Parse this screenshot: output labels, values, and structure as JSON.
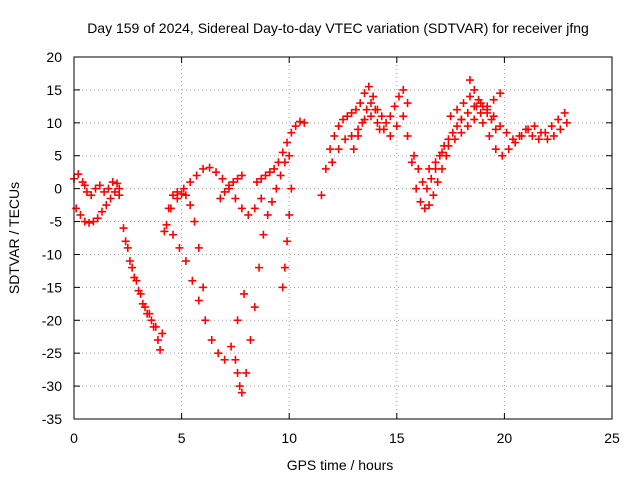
{
  "chart_data": {
    "type": "scatter",
    "title": "Day 159 of 2024, Sidereal Day-to-day VTEC variation (SDTVAR) for receiver jfng",
    "xlabel": "GPS time / hours",
    "ylabel": "SDTVAR / TECUs",
    "xlim": [
      0,
      25
    ],
    "ylim": [
      -35,
      20
    ],
    "xticks": [
      "0",
      "5",
      "10",
      "15",
      "20",
      "25"
    ],
    "yticks": [
      "20",
      "15",
      "10",
      "5",
      "0",
      "-5",
      "-10",
      "-15",
      "-20",
      "-25",
      "-30",
      "-35"
    ],
    "grid": true,
    "marker": "+",
    "series": [
      {
        "name": "SDTVAR",
        "color": "#ff0000",
        "x": [
          0.0,
          0.2,
          0.4,
          0.5,
          0.6,
          0.8,
          1.0,
          1.2,
          1.4,
          1.6,
          1.8,
          2.0,
          2.1,
          0.1,
          0.3,
          0.5,
          0.7,
          0.9,
          1.1,
          1.3,
          1.5,
          1.7,
          1.9,
          2.1,
          2.3,
          2.5,
          2.7,
          2.9,
          3.1,
          3.3,
          3.5,
          3.7,
          3.9,
          4.0,
          2.4,
          2.6,
          2.8,
          3.0,
          3.2,
          3.4,
          3.6,
          3.8,
          4.1,
          4.2,
          4.4,
          4.6,
          4.8,
          5.0,
          5.2,
          5.4,
          5.6,
          5.8,
          6.0,
          4.3,
          4.6,
          4.9,
          5.2,
          5.5,
          5.8,
          6.1,
          6.4,
          6.7,
          7.0,
          7.3,
          7.6,
          7.9,
          4.5,
          4.8,
          5.1,
          5.4,
          5.7,
          6.0,
          6.3,
          6.6,
          6.9,
          7.2,
          7.5,
          7.8,
          8.1,
          8.4,
          8.7,
          6.8,
          7.0,
          7.2,
          7.4,
          7.6,
          7.8,
          7.5,
          7.6,
          7.7,
          7.8,
          8.0,
          8.2,
          8.4,
          8.6,
          8.8,
          9.0,
          9.2,
          9.4,
          9.6,
          9.8,
          10.0,
          8.5,
          8.7,
          8.9,
          9.1,
          9.3,
          9.5,
          9.7,
          9.9,
          10.1,
          10.3,
          10.5,
          10.7,
          9.7,
          9.8,
          9.9,
          10.0,
          10.1,
          11.5,
          11.7,
          11.9,
          12.1,
          12.3,
          12.5,
          12.7,
          12.9,
          13.1,
          13.3,
          13.5,
          13.7,
          13.9,
          14.1,
          14.3,
          14.5,
          14.7,
          14.9,
          15.1,
          15.3,
          15.5,
          12.0,
          12.3,
          12.6,
          12.9,
          13.2,
          13.5,
          13.8,
          14.1,
          14.4,
          14.7,
          15.0,
          15.3,
          13.0,
          13.2,
          13.4,
          13.6,
          13.8,
          14.0,
          14.2,
          15.5,
          15.7,
          15.9,
          16.1,
          16.3,
          16.5,
          16.7,
          16.9,
          17.1,
          17.3,
          15.8,
          16.0,
          16.2,
          16.4,
          16.6,
          16.8,
          17.0,
          17.2,
          17.4,
          17.6,
          17.8,
          18.0,
          16.5,
          16.8,
          17.1,
          17.4,
          17.7,
          18.0,
          18.3,
          18.6,
          18.9,
          19.2,
          19.5,
          19.8,
          17.5,
          17.8,
          18.1,
          18.4,
          18.7,
          19.0,
          19.3,
          19.6,
          19.9,
          20.2,
          20.5,
          20.8,
          21.1,
          21.4,
          21.7,
          22.0,
          22.3,
          22.6,
          22.9,
          18.0,
          18.3,
          18.6,
          18.9,
          19.2,
          19.5,
          19.8,
          20.1,
          20.4,
          20.7,
          21.0,
          21.3,
          21.6,
          21.9,
          22.2,
          22.5,
          22.8,
          18.4,
          18.6,
          18.8,
          19.0,
          19.2,
          19.4,
          19.6
        ],
        "y": [
          1.5,
          2.2,
          1.0,
          0.5,
          -0.5,
          -1.0,
          0.0,
          0.5,
          -0.5,
          0.0,
          1.0,
          0.8,
          0.0,
          -3.0,
          -4.0,
          -5.0,
          -5.2,
          -5.0,
          -4.5,
          -3.5,
          -2.5,
          -1.5,
          -0.5,
          -1.0,
          -6.0,
          -9.0,
          -12.0,
          -14.0,
          -16.0,
          -18.0,
          -19.0,
          -21.0,
          -23.0,
          -24.5,
          -8.0,
          -11.0,
          -13.5,
          -15.5,
          -17.5,
          -19.0,
          -20.0,
          -21.0,
          -22.0,
          -6.5,
          -3.0,
          -1.0,
          -0.5,
          -0.8,
          -1.0,
          -2.5,
          -5.0,
          -9.0,
          -15.0,
          -5.5,
          -7.0,
          -9.0,
          -11.0,
          -14.0,
          -17.0,
          -20.0,
          -23.0,
          -25.0,
          -26.0,
          -24.0,
          -20.0,
          -16.0,
          -3.0,
          -1.5,
          0.0,
          1.0,
          2.0,
          3.0,
          3.2,
          2.5,
          1.5,
          0.0,
          -1.5,
          -3.0,
          -4.0,
          -3.0,
          -1.5,
          -1.5,
          -0.5,
          0.5,
          1.0,
          1.5,
          2.0,
          -26.0,
          -28.0,
          -30.0,
          -31.0,
          -28.0,
          -23.0,
          -18.0,
          -12.0,
          -7.0,
          -4.0,
          -2.0,
          0.0,
          2.0,
          4.0,
          5.0,
          1.0,
          1.5,
          2.0,
          2.5,
          3.0,
          4.0,
          5.5,
          7.0,
          8.5,
          9.5,
          10.2,
          10.0,
          -15.0,
          -12.0,
          -8.0,
          -4.0,
          0.0,
          -1.0,
          3.0,
          6.0,
          8.0,
          9.5,
          10.5,
          11.0,
          11.5,
          12.0,
          13.0,
          14.5,
          15.5,
          14.0,
          12.0,
          11.0,
          10.0,
          11.0,
          12.5,
          14.0,
          15.0,
          13.0,
          4.0,
          6.0,
          7.5,
          8.0,
          9.0,
          10.5,
          11.0,
          10.0,
          9.0,
          8.0,
          9.5,
          11.0,
          6.0,
          8.0,
          10.0,
          12.0,
          13.0,
          12.0,
          9.0,
          8.0,
          4.0,
          0.0,
          -2.0,
          -3.0,
          -2.5,
          -1.0,
          1.0,
          3.0,
          5.0,
          5.0,
          3.0,
          1.0,
          0.0,
          1.5,
          3.0,
          5.0,
          6.5,
          7.5,
          8.5,
          9.5,
          10.5,
          3.0,
          4.0,
          5.5,
          6.5,
          7.5,
          8.5,
          9.5,
          10.5,
          11.5,
          12.5,
          13.5,
          14.5,
          11.0,
          12.0,
          13.0,
          14.0,
          12.5,
          10.0,
          8.0,
          6.0,
          5.0,
          6.0,
          7.0,
          8.0,
          9.0,
          9.5,
          8.5,
          7.5,
          8.0,
          9.0,
          10.0,
          10.5,
          11.5,
          12.5,
          13.0,
          12.0,
          11.0,
          9.5,
          8.5,
          7.5,
          8.0,
          9.0,
          8.0,
          7.5,
          8.5,
          9.5,
          10.5,
          11.5,
          16.5,
          15.0,
          13.5,
          12.5,
          11.5,
          10.5,
          9.0
        ]
      }
    ]
  }
}
